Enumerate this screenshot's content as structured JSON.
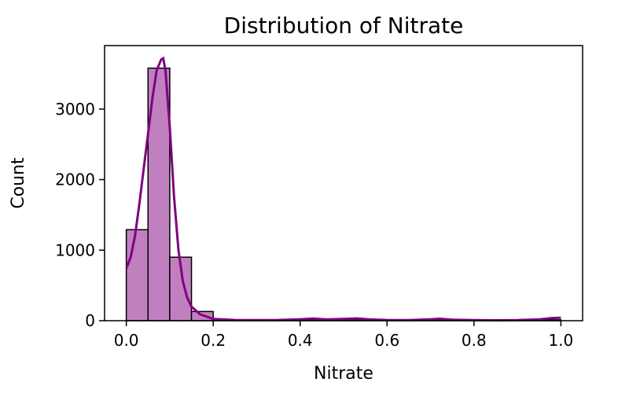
{
  "chart_data": {
    "type": "bar",
    "title": "Distribution of Nitrate",
    "xlabel": "Nitrate",
    "ylabel": "Count",
    "xlim": [
      -0.05,
      1.05
    ],
    "ylim": [
      0,
      3900
    ],
    "xticks": [
      0.0,
      0.2,
      0.4,
      0.6,
      0.8,
      1.0
    ],
    "xtick_labels": [
      "0.0",
      "0.2",
      "0.4",
      "0.6",
      "0.8",
      "1.0"
    ],
    "yticks": [
      0,
      1000,
      2000,
      3000
    ],
    "ytick_labels": [
      "0",
      "1000",
      "2000",
      "3000"
    ],
    "grid": false,
    "bin_width": 0.05,
    "bins": [
      {
        "start": 0.0,
        "count": 1290
      },
      {
        "start": 0.05,
        "count": 3580
      },
      {
        "start": 0.1,
        "count": 900
      },
      {
        "start": 0.15,
        "count": 130
      },
      {
        "start": 0.2,
        "count": 8
      },
      {
        "start": 0.25,
        "count": 2
      },
      {
        "start": 0.3,
        "count": 1
      },
      {
        "start": 0.35,
        "count": 3
      },
      {
        "start": 0.4,
        "count": 10
      },
      {
        "start": 0.45,
        "count": 4
      },
      {
        "start": 0.5,
        "count": 8
      },
      {
        "start": 0.55,
        "count": 3
      },
      {
        "start": 0.6,
        "count": 1
      },
      {
        "start": 0.65,
        "count": 2
      },
      {
        "start": 0.7,
        "count": 8
      },
      {
        "start": 0.75,
        "count": 2
      },
      {
        "start": 0.8,
        "count": 1
      },
      {
        "start": 0.85,
        "count": 1
      },
      {
        "start": 0.9,
        "count": 2
      },
      {
        "start": 0.95,
        "count": 12
      }
    ],
    "kde": {
      "x": [
        0.0,
        0.01,
        0.02,
        0.03,
        0.04,
        0.05,
        0.06,
        0.07,
        0.08,
        0.085,
        0.09,
        0.1,
        0.11,
        0.12,
        0.13,
        0.14,
        0.15,
        0.17,
        0.2,
        0.25,
        0.3,
        0.35,
        0.4,
        0.43,
        0.46,
        0.5,
        0.53,
        0.56,
        0.6,
        0.65,
        0.7,
        0.72,
        0.75,
        0.8,
        0.85,
        0.9,
        0.95,
        0.98,
        1.0
      ],
      "y": [
        740,
        900,
        1200,
        1650,
        2150,
        2650,
        3150,
        3550,
        3700,
        3720,
        3550,
        2750,
        1750,
        1000,
        560,
        330,
        200,
        90,
        25,
        10,
        8,
        10,
        20,
        30,
        18,
        25,
        32,
        18,
        10,
        8,
        20,
        28,
        15,
        8,
        6,
        8,
        18,
        38,
        42
      ]
    },
    "colors": {
      "bar_fill": "#c080c0",
      "bar_edge": "#000000",
      "kde_line": "#800080"
    }
  }
}
